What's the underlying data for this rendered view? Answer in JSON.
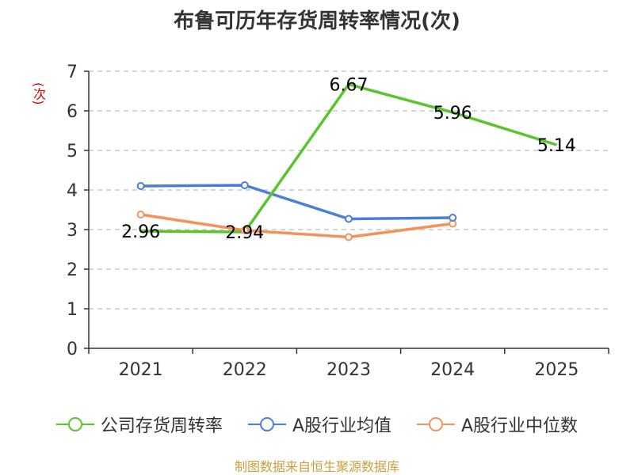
{
  "chart_data": {
    "type": "line",
    "title": "布鲁可历年存货周转率情况(次)",
    "ylabel": "(次)",
    "categories": [
      "2021",
      "2022",
      "2023",
      "2024",
      "2025"
    ],
    "ylim": [
      0,
      7
    ],
    "yticks": [
      "0",
      "1",
      "2",
      "3",
      "4",
      "5",
      "6",
      "7"
    ],
    "grid": true,
    "legend_position": "bottom",
    "series": [
      {
        "name": "公司存货周转率",
        "color": "#5ac42c",
        "values": [
          2.96,
          2.94,
          6.67,
          5.96,
          5.14
        ],
        "labels": [
          "2.96",
          "2.94",
          "6.67",
          "5.96",
          "5.14"
        ]
      },
      {
        "name": "A股行业均值",
        "color": "#4a7fd8",
        "values": [
          4.1,
          4.12,
          3.27,
          3.3,
          null
        ]
      },
      {
        "name": "A股行业中位数",
        "color": "#f5915a",
        "values": [
          3.38,
          2.98,
          2.81,
          3.15,
          null
        ]
      }
    ]
  },
  "source": "制图数据来自恒生聚源数据库"
}
